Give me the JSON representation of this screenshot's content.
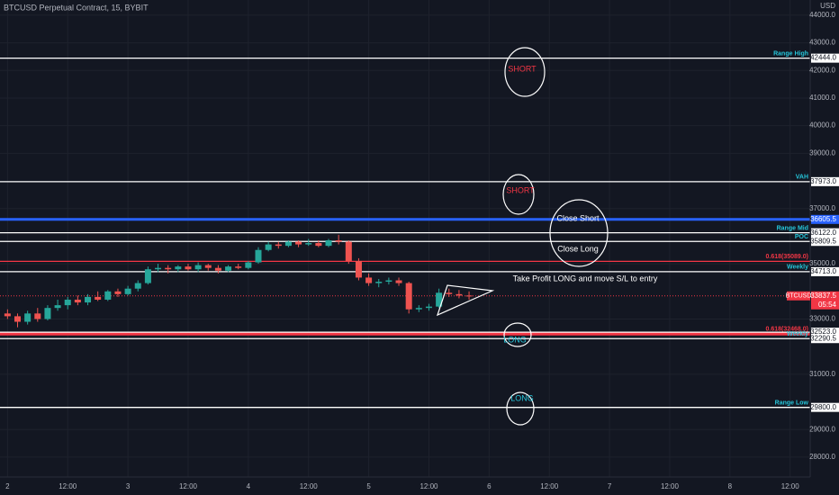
{
  "chart_data": {
    "type": "candlestick",
    "title": "BTCUSD Perpetual Contract, 15, BYBIT",
    "currency": "USD",
    "x": [
      0,
      2,
      4,
      6,
      8,
      10,
      12,
      14,
      16,
      18,
      20,
      22,
      24,
      26,
      28,
      30,
      32,
      34,
      36,
      38,
      40,
      42,
      44,
      46,
      48,
      50,
      52,
      54,
      56,
      58,
      60,
      62,
      64,
      66,
      68,
      70,
      72,
      74,
      76,
      78,
      80,
      82,
      84,
      86,
      88,
      90,
      92
    ],
    "open": [
      33200,
      33100,
      32900,
      33200,
      33000,
      33400,
      33500,
      33700,
      33600,
      33800,
      33700,
      34000,
      33900,
      34100,
      34300,
      34800,
      34850,
      34800,
      34900,
      34800,
      34950,
      34850,
      34750,
      34900,
      34850,
      35050,
      35500,
      35700,
      35650,
      35800,
      35700,
      35750,
      35650,
      35850,
      35800,
      35100,
      34500,
      34300,
      34350,
      34400,
      34300,
      33350,
      33400,
      33450,
      33950,
      33900,
      33850
    ],
    "high": [
      33350,
      33200,
      33300,
      33400,
      33500,
      33700,
      33800,
      33850,
      33900,
      34000,
      34050,
      34100,
      34200,
      34400,
      34900,
      35000,
      34950,
      34950,
      35000,
      35050,
      35000,
      34950,
      34950,
      35000,
      35100,
      35600,
      35800,
      35800,
      35850,
      35850,
      35900,
      35850,
      35900,
      36050,
      35850,
      35200,
      34650,
      34450,
      34500,
      34500,
      34350,
      33500,
      33550,
      34100,
      34100,
      34050,
      34000
    ],
    "low": [
      33000,
      32700,
      32800,
      32900,
      32950,
      33300,
      33350,
      33500,
      33500,
      33650,
      33650,
      33800,
      33850,
      34000,
      34250,
      34700,
      34650,
      34700,
      34750,
      34700,
      34750,
      34650,
      34700,
      34800,
      34800,
      35000,
      35450,
      35550,
      35600,
      35600,
      35650,
      35600,
      35600,
      35700,
      35000,
      34400,
      34200,
      34150,
      34250,
      34200,
      33200,
      33250,
      33300,
      33400,
      33800,
      33750,
      33700
    ],
    "close": [
      33100,
      32900,
      33200,
      33000,
      33400,
      33500,
      33700,
      33600,
      33800,
      33700,
      34000,
      33900,
      34100,
      34300,
      34800,
      34850,
      34800,
      34900,
      34800,
      34950,
      34850,
      34750,
      34900,
      34850,
      35050,
      35500,
      35700,
      35650,
      35800,
      35700,
      35750,
      35650,
      35850,
      35800,
      35100,
      34500,
      34300,
      34350,
      34400,
      34300,
      33350,
      33400,
      33450,
      33950,
      33900,
      33850,
      33837
    ],
    "up_color": "#26a69a",
    "down_color": "#ef5350",
    "xlim": [
      -1.5,
      160
    ],
    "xticks": [
      {
        "value": 0,
        "label": "2"
      },
      {
        "value": 12,
        "label": "12:00"
      },
      {
        "value": 24,
        "label": "3"
      },
      {
        "value": 36,
        "label": "12:00"
      },
      {
        "value": 48,
        "label": "4"
      },
      {
        "value": 60,
        "label": "12:00"
      },
      {
        "value": 72,
        "label": "5"
      },
      {
        "value": 84,
        "label": "12:00"
      },
      {
        "value": 96,
        "label": "6"
      },
      {
        "value": 108,
        "label": "12:00"
      },
      {
        "value": 120,
        "label": "7"
      },
      {
        "value": 132,
        "label": "12:00"
      },
      {
        "value": 144,
        "label": "8"
      },
      {
        "value": 156,
        "label": "12:00"
      }
    ],
    "ylim": [
      27280,
      44550
    ],
    "yticks": [
      {
        "value": 44000,
        "label": "44000.0"
      },
      {
        "value": 43000,
        "label": "43000.0"
      },
      {
        "value": 42000,
        "label": "42000.0"
      },
      {
        "value": 41000,
        "label": "41000.0"
      },
      {
        "value": 40000,
        "label": "40000.0"
      },
      {
        "value": 39000,
        "label": "39000.0"
      },
      {
        "value": 37000,
        "label": "37000.0"
      },
      {
        "value": 35000,
        "label": "35000.0"
      },
      {
        "value": 33000,
        "label": "33000.0"
      },
      {
        "value": 31000,
        "label": "31000.0"
      },
      {
        "value": 29000,
        "label": "29000.0"
      },
      {
        "value": 28000,
        "label": "28000.0"
      }
    ],
    "grid": true,
    "levels": [
      {
        "name": "Range High",
        "value": 42444,
        "label": "42444.0",
        "color": "#ffffff"
      },
      {
        "name": "VAH",
        "value": 37973,
        "label": "37973.0",
        "color": "#ffffff"
      },
      {
        "value": 36605.5,
        "label": "36605.5",
        "color": "#2962ff"
      },
      {
        "name": "Range Mid",
        "value": 36122,
        "label": "36122.0",
        "color": "#ffffff"
      },
      {
        "name": "POC",
        "value": 35809.5,
        "label": "35809.5",
        "color": "#ffffff"
      },
      {
        "name": "0.618(35089.0)",
        "value": 35089,
        "color": "#f23645"
      },
      {
        "name": "Weekly",
        "value": 34713,
        "label": "34713.0",
        "color": "#ffffff"
      },
      {
        "name": "0.618(32468.0)",
        "value": 32468,
        "color": "#f23645"
      },
      {
        "value": 32523,
        "label": "32523.0",
        "color": "#ffffff"
      },
      {
        "name": "Weekly",
        "value": 32290.5,
        "label": "32290.5",
        "color": "#ffffff"
      },
      {
        "name": "Range Low",
        "value": 29800,
        "label": "29800.0",
        "color": "#ffffff"
      }
    ],
    "level_name_color": "#26c6da",
    "last_price": {
      "name": "BTCUSD",
      "value": 33837.5,
      "label": "33837.5",
      "countdown": "05:54",
      "color": "#f23645"
    },
    "annotations": [
      "SHORT",
      "SHORT",
      "Close Short",
      "Close Long",
      "Take Profit LONG and move S/L to entry",
      "LONG",
      "LONG"
    ]
  }
}
